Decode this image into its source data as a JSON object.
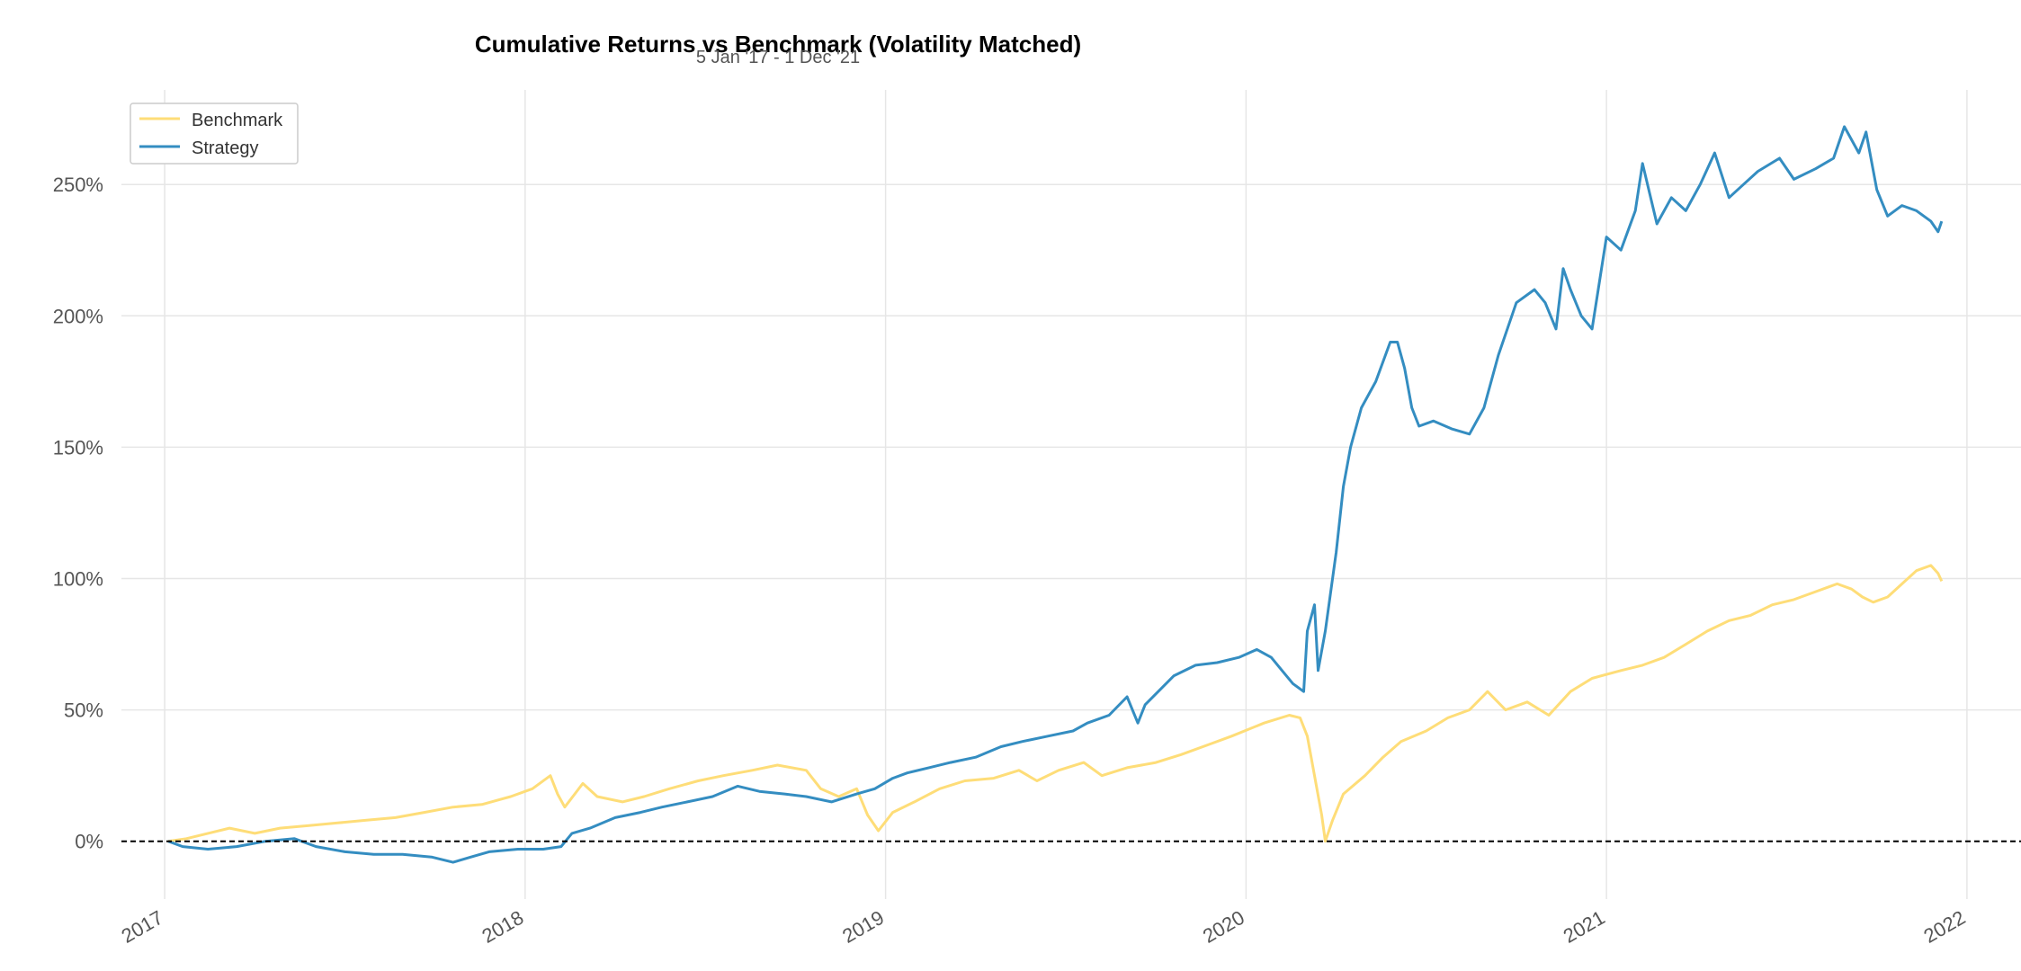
{
  "chart_data": {
    "type": "line",
    "title": "Cumulative Returns vs Benchmark (Volatility Matched)",
    "subtitle": "5 Jan '17 -  1 Dec '21",
    "xlabel": "",
    "ylabel": "",
    "xlim": [
      2016.88,
      2022.15
    ],
    "ylim": [
      -22,
      286
    ],
    "x_ticks": [
      2017,
      2018,
      2019,
      2020,
      2021,
      2022
    ],
    "x_tick_labels": [
      "2017",
      "2018",
      "2019",
      "2020",
      "2021",
      "2022"
    ],
    "y_ticks": [
      0,
      50,
      100,
      150,
      200,
      250
    ],
    "y_tick_labels": [
      "0%",
      "50%",
      "100%",
      "150%",
      "200%",
      "250%"
    ],
    "grid": true,
    "legend_position": "top-left",
    "zero_line": {
      "value": 0,
      "style": "dashed",
      "color": "#000000"
    },
    "series": [
      {
        "name": "Benchmark",
        "color": "#fedd78",
        "points": [
          [
            2017.01,
            0
          ],
          [
            2017.06,
            1
          ],
          [
            2017.12,
            3
          ],
          [
            2017.18,
            5
          ],
          [
            2017.25,
            3
          ],
          [
            2017.32,
            5
          ],
          [
            2017.4,
            6
          ],
          [
            2017.48,
            7
          ],
          [
            2017.56,
            8
          ],
          [
            2017.64,
            9
          ],
          [
            2017.72,
            11
          ],
          [
            2017.8,
            13
          ],
          [
            2017.88,
            14
          ],
          [
            2017.96,
            17
          ],
          [
            2018.02,
            20
          ],
          [
            2018.07,
            25
          ],
          [
            2018.09,
            18
          ],
          [
            2018.11,
            13
          ],
          [
            2018.16,
            22
          ],
          [
            2018.2,
            17
          ],
          [
            2018.27,
            15
          ],
          [
            2018.33,
            17
          ],
          [
            2018.4,
            20
          ],
          [
            2018.48,
            23
          ],
          [
            2018.55,
            25
          ],
          [
            2018.63,
            27
          ],
          [
            2018.7,
            29
          ],
          [
            2018.78,
            27
          ],
          [
            2018.82,
            20
          ],
          [
            2018.87,
            17
          ],
          [
            2018.92,
            20
          ],
          [
            2018.95,
            10
          ],
          [
            2018.98,
            4
          ],
          [
            2019.02,
            11
          ],
          [
            2019.08,
            15
          ],
          [
            2019.15,
            20
          ],
          [
            2019.22,
            23
          ],
          [
            2019.3,
            24
          ],
          [
            2019.37,
            27
          ],
          [
            2019.42,
            23
          ],
          [
            2019.48,
            27
          ],
          [
            2019.55,
            30
          ],
          [
            2019.6,
            25
          ],
          [
            2019.67,
            28
          ],
          [
            2019.75,
            30
          ],
          [
            2019.82,
            33
          ],
          [
            2019.9,
            37
          ],
          [
            2019.96,
            40
          ],
          [
            2020.05,
            45
          ],
          [
            2020.12,
            48
          ],
          [
            2020.15,
            47
          ],
          [
            2020.17,
            40
          ],
          [
            2020.19,
            25
          ],
          [
            2020.21,
            10
          ],
          [
            2020.22,
            0
          ],
          [
            2020.24,
            8
          ],
          [
            2020.27,
            18
          ],
          [
            2020.33,
            25
          ],
          [
            2020.38,
            32
          ],
          [
            2020.43,
            38
          ],
          [
            2020.5,
            42
          ],
          [
            2020.56,
            47
          ],
          [
            2020.62,
            50
          ],
          [
            2020.67,
            57
          ],
          [
            2020.72,
            50
          ],
          [
            2020.78,
            53
          ],
          [
            2020.84,
            48
          ],
          [
            2020.9,
            57
          ],
          [
            2020.96,
            62
          ],
          [
            2021.04,
            65
          ],
          [
            2021.1,
            67
          ],
          [
            2021.16,
            70
          ],
          [
            2021.22,
            75
          ],
          [
            2021.28,
            80
          ],
          [
            2021.34,
            84
          ],
          [
            2021.4,
            86
          ],
          [
            2021.46,
            90
          ],
          [
            2021.52,
            92
          ],
          [
            2021.58,
            95
          ],
          [
            2021.64,
            98
          ],
          [
            2021.68,
            96
          ],
          [
            2021.71,
            93
          ],
          [
            2021.74,
            91
          ],
          [
            2021.78,
            93
          ],
          [
            2021.82,
            98
          ],
          [
            2021.86,
            103
          ],
          [
            2021.9,
            105
          ],
          [
            2021.92,
            102
          ],
          [
            2021.93,
            99
          ]
        ]
      },
      {
        "name": "Strategy",
        "color": "#348dc1",
        "points": [
          [
            2017.01,
            0
          ],
          [
            2017.05,
            -2
          ],
          [
            2017.12,
            -3
          ],
          [
            2017.2,
            -2
          ],
          [
            2017.28,
            0
          ],
          [
            2017.36,
            1
          ],
          [
            2017.42,
            -2
          ],
          [
            2017.5,
            -4
          ],
          [
            2017.58,
            -5
          ],
          [
            2017.66,
            -5
          ],
          [
            2017.74,
            -6
          ],
          [
            2017.8,
            -8
          ],
          [
            2017.85,
            -6
          ],
          [
            2017.9,
            -4
          ],
          [
            2017.98,
            -3
          ],
          [
            2018.05,
            -3
          ],
          [
            2018.1,
            -2
          ],
          [
            2018.13,
            3
          ],
          [
            2018.18,
            5
          ],
          [
            2018.25,
            9
          ],
          [
            2018.32,
            11
          ],
          [
            2018.38,
            13
          ],
          [
            2018.45,
            15
          ],
          [
            2018.52,
            17
          ],
          [
            2018.59,
            21
          ],
          [
            2018.65,
            19
          ],
          [
            2018.72,
            18
          ],
          [
            2018.78,
            17
          ],
          [
            2018.85,
            15
          ],
          [
            2018.92,
            18
          ],
          [
            2018.97,
            20
          ],
          [
            2019.02,
            24
          ],
          [
            2019.06,
            26
          ],
          [
            2019.12,
            28
          ],
          [
            2019.18,
            30
          ],
          [
            2019.25,
            32
          ],
          [
            2019.32,
            36
          ],
          [
            2019.38,
            38
          ],
          [
            2019.45,
            40
          ],
          [
            2019.52,
            42
          ],
          [
            2019.56,
            45
          ],
          [
            2019.62,
            48
          ],
          [
            2019.67,
            55
          ],
          [
            2019.7,
            45
          ],
          [
            2019.72,
            52
          ],
          [
            2019.8,
            63
          ],
          [
            2019.86,
            67
          ],
          [
            2019.92,
            68
          ],
          [
            2019.98,
            70
          ],
          [
            2020.03,
            73
          ],
          [
            2020.07,
            70
          ],
          [
            2020.1,
            65
          ],
          [
            2020.13,
            60
          ],
          [
            2020.16,
            57
          ],
          [
            2020.17,
            80
          ],
          [
            2020.19,
            90
          ],
          [
            2020.2,
            65
          ],
          [
            2020.22,
            80
          ],
          [
            2020.25,
            110
          ],
          [
            2020.27,
            135
          ],
          [
            2020.29,
            150
          ],
          [
            2020.32,
            165
          ],
          [
            2020.36,
            175
          ],
          [
            2020.4,
            190
          ],
          [
            2020.42,
            190
          ],
          [
            2020.44,
            180
          ],
          [
            2020.46,
            165
          ],
          [
            2020.48,
            158
          ],
          [
            2020.52,
            160
          ],
          [
            2020.57,
            157
          ],
          [
            2020.62,
            155
          ],
          [
            2020.66,
            165
          ],
          [
            2020.7,
            185
          ],
          [
            2020.75,
            205
          ],
          [
            2020.8,
            210
          ],
          [
            2020.83,
            205
          ],
          [
            2020.86,
            195
          ],
          [
            2020.88,
            218
          ],
          [
            2020.9,
            210
          ],
          [
            2020.93,
            200
          ],
          [
            2020.96,
            195
          ],
          [
            2021.0,
            230
          ],
          [
            2021.04,
            225
          ],
          [
            2021.08,
            240
          ],
          [
            2021.1,
            258
          ],
          [
            2021.14,
            235
          ],
          [
            2021.18,
            245
          ],
          [
            2021.22,
            240
          ],
          [
            2021.26,
            250
          ],
          [
            2021.3,
            262
          ],
          [
            2021.34,
            245
          ],
          [
            2021.38,
            250
          ],
          [
            2021.42,
            255
          ],
          [
            2021.48,
            260
          ],
          [
            2021.52,
            252
          ],
          [
            2021.58,
            256
          ],
          [
            2021.63,
            260
          ],
          [
            2021.66,
            272
          ],
          [
            2021.7,
            262
          ],
          [
            2021.72,
            270
          ],
          [
            2021.75,
            248
          ],
          [
            2021.78,
            238
          ],
          [
            2021.82,
            242
          ],
          [
            2021.86,
            240
          ],
          [
            2021.9,
            236
          ],
          [
            2021.92,
            232
          ],
          [
            2021.93,
            236
          ]
        ]
      }
    ]
  }
}
